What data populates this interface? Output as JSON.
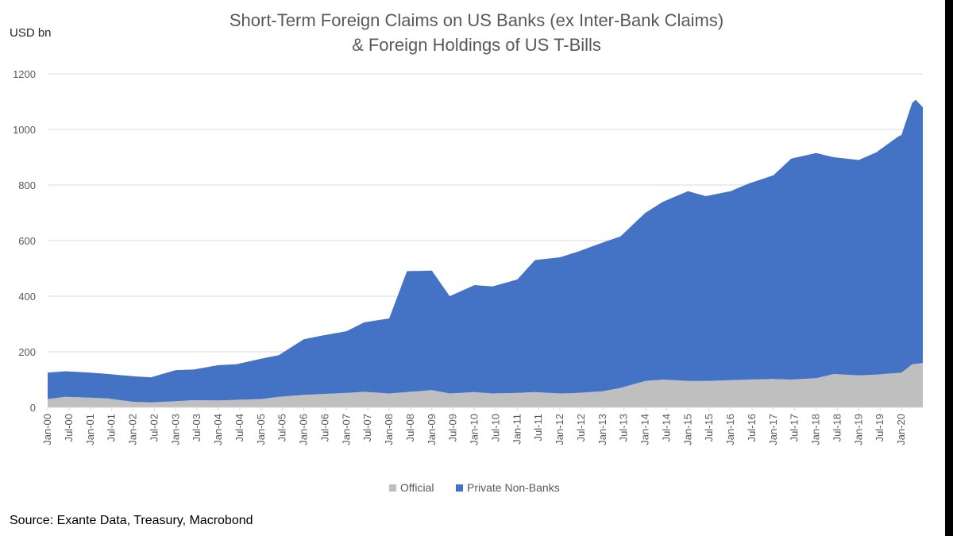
{
  "chart_data": {
    "type": "area",
    "stacked": true,
    "title_lines": [
      "Short-Term Foreign Claims on US Banks (ex Inter-Bank Claims)",
      "& Foreign Holdings of US T-Bills"
    ],
    "ylabel": "USD bn",
    "ylim": [
      0,
      1200
    ],
    "yticks": [
      0,
      200,
      400,
      600,
      800,
      1000,
      1200
    ],
    "grid": true,
    "legend_position": "bottom-center",
    "xlim": [
      "2000-01",
      "2020-07"
    ],
    "x_tick_labels": [
      "Jan-00",
      "Jul-00",
      "Jan-01",
      "Jul-01",
      "Jan-02",
      "Jul-02",
      "Jan-03",
      "Jul-03",
      "Jan-04",
      "Jul-04",
      "Jan-05",
      "Jul-05",
      "Jan-06",
      "Jul-06",
      "Jan-07",
      "Jul-07",
      "Jan-08",
      "Jul-08",
      "Jan-09",
      "Jul-09",
      "Jan-10",
      "Jul-10",
      "Jan-11",
      "Jul-11",
      "Jan-12",
      "Jul-12",
      "Jan-13",
      "Jul-13",
      "Jan-14",
      "Jul-14",
      "Jan-15",
      "Jul-15",
      "Jan-16",
      "Jul-16",
      "Jan-17",
      "Jul-17",
      "Jan-18",
      "Jul-18",
      "Jan-19",
      "Jul-19",
      "Jan-20"
    ],
    "series": [
      {
        "name": "Official",
        "color": "#BFBFBF",
        "points": [
          [
            "2000-01",
            30
          ],
          [
            "2000-06",
            38
          ],
          [
            "2001-01",
            35
          ],
          [
            "2001-06",
            32
          ],
          [
            "2002-01",
            20
          ],
          [
            "2002-06",
            18
          ],
          [
            "2003-01",
            22
          ],
          [
            "2003-06",
            26
          ],
          [
            "2004-01",
            25
          ],
          [
            "2004-06",
            27
          ],
          [
            "2005-01",
            30
          ],
          [
            "2005-06",
            38
          ],
          [
            "2006-01",
            45
          ],
          [
            "2006-06",
            48
          ],
          [
            "2007-01",
            52
          ],
          [
            "2007-06",
            56
          ],
          [
            "2008-01",
            50
          ],
          [
            "2008-06",
            55
          ],
          [
            "2009-01",
            62
          ],
          [
            "2009-06",
            50
          ],
          [
            "2010-01",
            55
          ],
          [
            "2010-06",
            50
          ],
          [
            "2011-01",
            52
          ],
          [
            "2011-06",
            55
          ],
          [
            "2012-01",
            50
          ],
          [
            "2012-06",
            52
          ],
          [
            "2013-01",
            58
          ],
          [
            "2013-06",
            70
          ],
          [
            "2014-01",
            95
          ],
          [
            "2014-06",
            100
          ],
          [
            "2015-01",
            95
          ],
          [
            "2015-06",
            95
          ],
          [
            "2016-01",
            98
          ],
          [
            "2016-06",
            100
          ],
          [
            "2017-01",
            102
          ],
          [
            "2017-06",
            100
          ],
          [
            "2018-01",
            105
          ],
          [
            "2018-06",
            120
          ],
          [
            "2019-01",
            115
          ],
          [
            "2019-06",
            118
          ],
          [
            "2020-01",
            125
          ],
          [
            "2020-04",
            155
          ],
          [
            "2020-07",
            160
          ]
        ]
      },
      {
        "name": "Private Non-Banks",
        "color": "#4472C4",
        "points": [
          [
            "2000-01",
            95
          ],
          [
            "2000-06",
            92
          ],
          [
            "2001-01",
            90
          ],
          [
            "2001-06",
            88
          ],
          [
            "2002-01",
            92
          ],
          [
            "2002-06",
            90
          ],
          [
            "2003-01",
            112
          ],
          [
            "2003-06",
            110
          ],
          [
            "2004-01",
            127
          ],
          [
            "2004-06",
            128
          ],
          [
            "2005-01",
            145
          ],
          [
            "2005-06",
            150
          ],
          [
            "2006-01",
            200
          ],
          [
            "2006-06",
            210
          ],
          [
            "2007-01",
            222
          ],
          [
            "2007-06",
            250
          ],
          [
            "2008-01",
            270
          ],
          [
            "2008-06",
            435
          ],
          [
            "2009-01",
            430
          ],
          [
            "2009-06",
            350
          ],
          [
            "2010-01",
            385
          ],
          [
            "2010-06",
            385
          ],
          [
            "2011-01",
            408
          ],
          [
            "2011-06",
            475
          ],
          [
            "2012-01",
            490
          ],
          [
            "2012-06",
            508
          ],
          [
            "2013-01",
            535
          ],
          [
            "2013-06",
            545
          ],
          [
            "2014-01",
            605
          ],
          [
            "2014-06",
            640
          ],
          [
            "2015-01",
            683
          ],
          [
            "2015-06",
            665
          ],
          [
            "2016-01",
            680
          ],
          [
            "2016-06",
            705
          ],
          [
            "2017-01",
            733
          ],
          [
            "2017-06",
            795
          ],
          [
            "2018-01",
            810
          ],
          [
            "2018-06",
            780
          ],
          [
            "2019-01",
            775
          ],
          [
            "2019-06",
            800
          ],
          [
            "2019-12",
            850
          ],
          [
            "2020-01",
            855
          ],
          [
            "2020-04",
            940
          ],
          [
            "2020-05",
            950
          ],
          [
            "2020-07",
            920
          ]
        ]
      }
    ]
  },
  "source_text": "Source: Exante Data, Treasury, Macrobond"
}
